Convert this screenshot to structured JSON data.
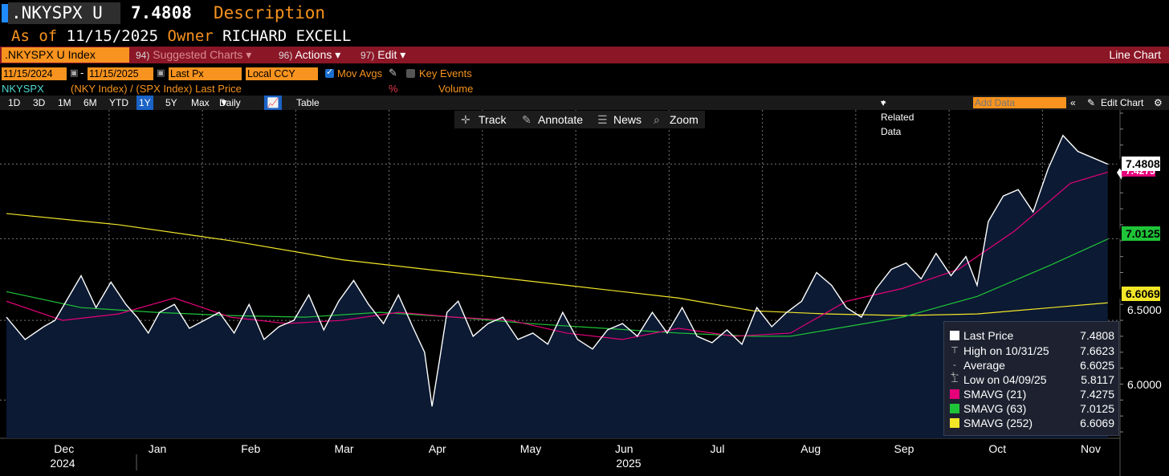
{
  "header": {
    "ticker": ".NKYSPX U",
    "price": "7.4808",
    "description": "Description",
    "as_of_label": "As of",
    "as_of_date": "11/15/2025",
    "owner_label": "Owner",
    "owner_name": "RICHARD EXCELL"
  },
  "toolbar": {
    "index_field": ".NKYSPX U Index",
    "suggested_num": "94)",
    "suggested_label": "Suggested Charts",
    "actions_num": "96)",
    "actions_label": "Actions",
    "edit_num": "97)",
    "edit_label": "Edit",
    "chart_type": "Line Chart"
  },
  "controls": {
    "start_date": "11/15/2024",
    "dash": "-",
    "end_date": "11/15/2025",
    "price_field": "Last Px",
    "currency": "Local CCY",
    "mov_avgs_label": "Mov Avgs",
    "key_events_label": "Key Events"
  },
  "series_row": {
    "security": "NKYSPX",
    "formula": "(NKY Index) / (SPX Index) Last Price",
    "pct": "%",
    "volume": "Volume"
  },
  "periods": [
    "1D",
    "3D",
    "1M",
    "6M",
    "YTD",
    "1Y",
    "5Y",
    "Max"
  ],
  "selected_period": "1Y",
  "frequency": "Daily",
  "table_label": "Table",
  "related_data_label": "+ Related Data",
  "add_data_placeholder": "Add Data",
  "edit_chart_label": "Edit Chart",
  "chart_tools": {
    "track": "Track",
    "annotate": "Annotate",
    "news": "News",
    "zoom": "Zoom"
  },
  "price_tags": {
    "last": "7.4808",
    "sma21": "7.4275",
    "sma63": "7.0125",
    "sma252": "6.6069"
  },
  "legend": {
    "last_label": "Last Price",
    "last_value": "7.4808",
    "high_label": "High on 10/31/25",
    "high_value": "7.6623",
    "avg_label": "Average",
    "avg_value": "6.6025",
    "low_label": "Low on 04/09/25",
    "low_value": "5.8117",
    "sma21_label": "SMAVG (21)",
    "sma21_value": "7.4275",
    "sma63_label": "SMAVG (63)",
    "sma63_value": "7.0125",
    "sma252_label": "SMAVG (252)",
    "sma252_value": "6.6069"
  },
  "colors": {
    "orange": "#f7931e",
    "sma21": "#e5007a",
    "sma63": "#1fc438",
    "sma252": "#f2e628",
    "fill": "#0c1a33"
  },
  "chart_data": {
    "type": "line",
    "y_ticks": [
      "6.0000",
      "6.5000",
      "7.0125",
      "7.4808"
    ],
    "ylim": [
      5.76,
      7.82
    ],
    "grid": true,
    "legend_position": "bottom-right",
    "x_month_labels": [
      "Dec",
      "Jan",
      "Feb",
      "Mar",
      "Apr",
      "May",
      "Jun",
      "Jul",
      "Aug",
      "Sep",
      "Oct",
      "Nov"
    ],
    "x_month_positions": [
      1.5,
      4.0,
      6.5,
      9.0,
      11.5,
      14.0,
      16.5,
      19.0,
      21.5,
      24.0,
      26.5,
      29.0
    ],
    "x_year_labels": [
      "2024",
      "2025"
    ],
    "series": [
      {
        "name": "Last Price",
        "color": "#ffffff",
        "x": [
          0,
          0.5,
          1,
          1.3,
          1.6,
          2,
          2.4,
          2.8,
          3.2,
          3.5,
          3.8,
          4.1,
          4.5,
          4.9,
          5.3,
          5.7,
          6.1,
          6.5,
          6.9,
          7.3,
          7.7,
          8.1,
          8.5,
          8.9,
          9.3,
          9.7,
          10.1,
          10.5,
          10.9,
          11.2,
          11.4,
          11.6,
          11.8,
          12.1,
          12.5,
          12.9,
          13.3,
          13.7,
          14.1,
          14.5,
          14.9,
          15.3,
          15.7,
          16.1,
          16.5,
          16.9,
          17.3,
          17.7,
          18.1,
          18.5,
          18.9,
          19.3,
          19.7,
          20.1,
          20.5,
          20.9,
          21.3,
          21.7,
          22.1,
          22.5,
          22.9,
          23.3,
          23.7,
          24.1,
          24.5,
          24.9,
          25.3,
          25.7,
          26.0,
          26.3,
          26.7,
          27.1,
          27.5,
          27.9,
          28.3,
          28.7,
          29.1,
          29.5
        ],
        "y": [
          6.52,
          6.38,
          6.46,
          6.5,
          6.62,
          6.78,
          6.58,
          6.74,
          6.6,
          6.52,
          6.42,
          6.55,
          6.6,
          6.45,
          6.5,
          6.55,
          6.42,
          6.6,
          6.38,
          6.46,
          6.5,
          6.66,
          6.44,
          6.62,
          6.75,
          6.6,
          6.48,
          6.66,
          6.45,
          6.3,
          5.96,
          6.25,
          6.55,
          6.62,
          6.4,
          6.48,
          6.52,
          6.38,
          6.42,
          6.35,
          6.55,
          6.38,
          6.32,
          6.44,
          6.48,
          6.4,
          6.55,
          6.42,
          6.58,
          6.4,
          6.36,
          6.44,
          6.35,
          6.58,
          6.46,
          6.55,
          6.62,
          6.8,
          6.72,
          6.58,
          6.52,
          6.7,
          6.82,
          6.86,
          6.76,
          6.92,
          6.78,
          6.9,
          6.72,
          7.12,
          7.28,
          7.32,
          7.18,
          7.45,
          7.66,
          7.56,
          7.52,
          7.48
        ]
      },
      {
        "name": "SMAVG (21)",
        "color": "#e5007a",
        "x": [
          0,
          1.5,
          3,
          4.5,
          6,
          7.5,
          9,
          10.5,
          12,
          13.5,
          15,
          16.5,
          18,
          19.5,
          21,
          22.5,
          24,
          25.5,
          27,
          28.5,
          29.5
        ],
        "y": [
          6.62,
          6.5,
          6.54,
          6.64,
          6.52,
          6.48,
          6.5,
          6.55,
          6.52,
          6.5,
          6.42,
          6.38,
          6.45,
          6.4,
          6.42,
          6.62,
          6.7,
          6.82,
          7.06,
          7.36,
          7.43
        ]
      },
      {
        "name": "SMAVG (63)",
        "color": "#1fc438",
        "x": [
          0,
          2,
          4,
          6,
          8,
          10,
          12,
          14,
          16,
          18,
          20,
          21,
          22,
          24,
          26,
          28,
          29.5
        ],
        "y": [
          6.68,
          6.58,
          6.55,
          6.53,
          6.52,
          6.55,
          6.52,
          6.48,
          6.45,
          6.42,
          6.4,
          6.4,
          6.44,
          6.52,
          6.65,
          6.85,
          7.01
        ]
      },
      {
        "name": "SMAVG (252)",
        "color": "#f2e628",
        "x": [
          0,
          3,
          6,
          9,
          12,
          15,
          18,
          20,
          22,
          24,
          26,
          28,
          29.5
        ],
        "y": [
          7.17,
          7.1,
          7.0,
          6.88,
          6.8,
          6.72,
          6.64,
          6.56,
          6.54,
          6.53,
          6.54,
          6.58,
          6.61
        ]
      }
    ]
  }
}
